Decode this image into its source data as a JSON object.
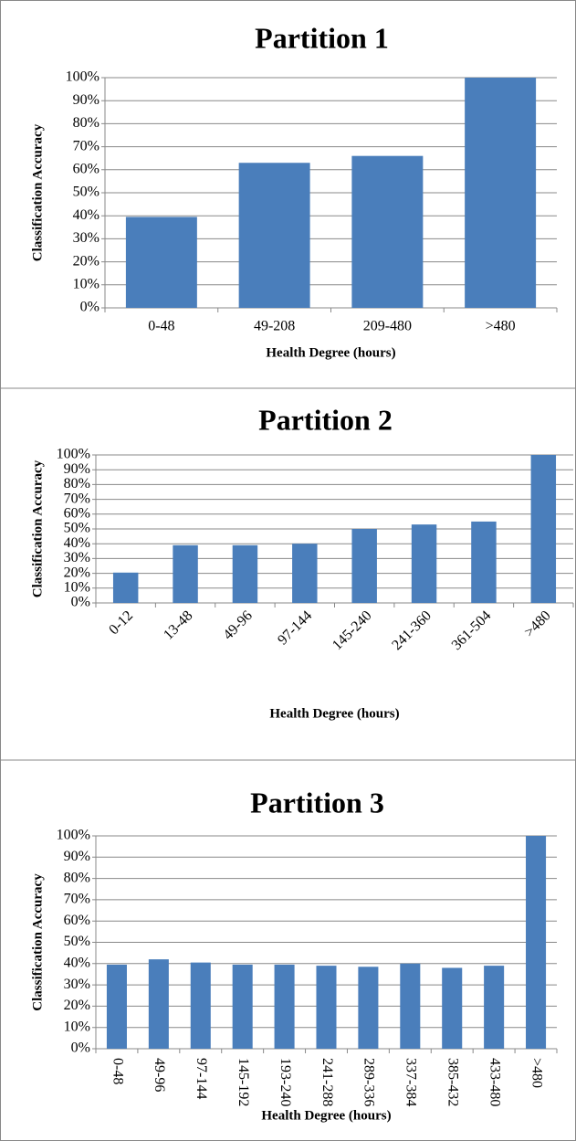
{
  "chart_data": [
    {
      "type": "bar",
      "title": "Partition 1",
      "xlabel": "Health Degree (hours)",
      "ylabel": "Classification Accuracy",
      "categories": [
        "0-48",
        "49-208",
        "209-480",
        ">480"
      ],
      "values": [
        39.5,
        63,
        66,
        100
      ],
      "color": "#4a7ebb",
      "ylim": [
        0,
        100
      ],
      "yticks": [
        {
          "value": 0,
          "label": "0%"
        },
        {
          "value": 10,
          "label": "10%"
        },
        {
          "value": 20,
          "label": "20%"
        },
        {
          "value": 30,
          "label": "30%"
        },
        {
          "value": 40,
          "label": "40%"
        },
        {
          "value": 50,
          "label": "50%"
        },
        {
          "value": 60,
          "label": "60%"
        },
        {
          "value": 70,
          "label": "70%"
        },
        {
          "value": 80,
          "label": "80%"
        },
        {
          "value": 90,
          "label": "90%"
        },
        {
          "value": 100,
          "label": "100%"
        }
      ],
      "grid": true,
      "xtick_rotation": 0
    },
    {
      "type": "bar",
      "title": "Partition 2",
      "xlabel": "Health Degree (hours)",
      "ylabel": "Classification Accuracy",
      "categories": [
        "0-12",
        "13-48",
        "49-96",
        "97-144",
        "145-240",
        "241-360",
        "361-504",
        ">480"
      ],
      "values": [
        20.5,
        39,
        39,
        40,
        50,
        53,
        55,
        100
      ],
      "color": "#4a7ebb",
      "ylim": [
        0,
        100
      ],
      "yticks": [
        {
          "value": 0,
          "label": "0%"
        },
        {
          "value": 10,
          "label": "10%"
        },
        {
          "value": 20,
          "label": "20%"
        },
        {
          "value": 30,
          "label": "30%"
        },
        {
          "value": 40,
          "label": "40%"
        },
        {
          "value": 50,
          "label": "50%"
        },
        {
          "value": 60,
          "label": "60%"
        },
        {
          "value": 70,
          "label": "70%"
        },
        {
          "value": 80,
          "label": "80%"
        },
        {
          "value": 90,
          "label": "90%"
        },
        {
          "value": 100,
          "label": "100%"
        }
      ],
      "grid": true,
      "xtick_rotation": 45
    },
    {
      "type": "bar",
      "title": "Partition 3",
      "xlabel": "Health Degree (hours)",
      "ylabel": "Classification Accuracy",
      "categories": [
        "0-48",
        "49-96",
        "97-144",
        "145-192",
        "193-240",
        "241-288",
        "289-336",
        "337-384",
        "385-432",
        "433-480",
        ">480"
      ],
      "values": [
        39.5,
        42,
        40.5,
        39.5,
        39.5,
        39,
        38.5,
        40,
        38,
        39,
        100
      ],
      "color": "#4a7ebb",
      "ylim": [
        0,
        100
      ],
      "yticks": [
        {
          "value": 0,
          "label": "0%"
        },
        {
          "value": 10,
          "label": "10%"
        },
        {
          "value": 20,
          "label": "20%"
        },
        {
          "value": 30,
          "label": "30%"
        },
        {
          "value": 40,
          "label": "40%"
        },
        {
          "value": 50,
          "label": "50%"
        },
        {
          "value": 60,
          "label": "60%"
        },
        {
          "value": 70,
          "label": "70%"
        },
        {
          "value": 80,
          "label": "80%"
        },
        {
          "value": 90,
          "label": "90%"
        },
        {
          "value": 100,
          "label": "100%"
        }
      ],
      "grid": true,
      "xtick_rotation": 90
    }
  ]
}
